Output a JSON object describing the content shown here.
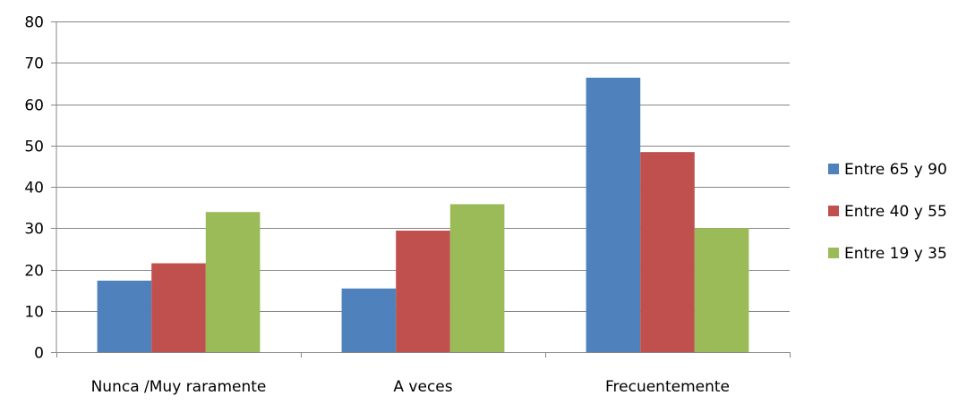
{
  "chart_data": {
    "type": "bar",
    "categories": [
      "Nunca /Muy raramente",
      "A veces",
      "Frecuentemente"
    ],
    "series": [
      {
        "name": "Entre 65 y 90",
        "color": "#4F81BD",
        "values": [
          17.3,
          15.4,
          66.4
        ]
      },
      {
        "name": "Entre 40 y 55",
        "color": "#C0504D",
        "values": [
          21.5,
          29.4,
          48.4
        ]
      },
      {
        "name": "Entre 19 y 35",
        "color": "#9BBB59",
        "values": [
          33.9,
          35.8,
          30.0
        ]
      }
    ],
    "ylim": [
      0,
      80
    ],
    "yticks": [
      "0",
      "10",
      "20",
      "30",
      "40",
      "50",
      "60",
      "70",
      "80"
    ],
    "title": "",
    "xlabel": "",
    "ylabel": "",
    "grid": true,
    "legend_position": "right"
  }
}
